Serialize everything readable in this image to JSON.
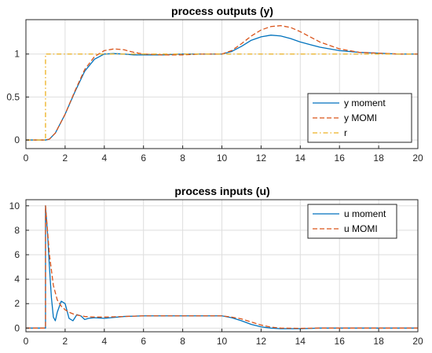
{
  "chart_data": [
    {
      "type": "line",
      "title": "process outputs (y)",
      "xlabel": "",
      "ylabel": "",
      "xlim": [
        0,
        20
      ],
      "ylim": [
        -0.1,
        1.4
      ],
      "xticks": [
        "0",
        "2",
        "4",
        "6",
        "8",
        "10",
        "12",
        "14",
        "16",
        "18",
        "20"
      ],
      "yticks": [
        "0",
        "0.5",
        "1"
      ],
      "grid": true,
      "legend_position": "lower-right",
      "series": [
        {
          "name": "y moment",
          "color": "#0072BD",
          "style": "solid",
          "x": [
            0,
            1.0,
            1.2,
            1.5,
            2.0,
            2.5,
            3.0,
            3.5,
            4.0,
            4.5,
            5.0,
            5.5,
            6.0,
            7.0,
            8.0,
            9.0,
            10.0,
            10.5,
            11.0,
            11.5,
            12.0,
            12.5,
            13.0,
            13.5,
            14.0,
            14.5,
            15.0,
            16.0,
            17.0,
            18.0,
            19.0,
            20.0
          ],
          "y": [
            0,
            0,
            0.01,
            0.08,
            0.3,
            0.56,
            0.8,
            0.94,
            1.0,
            1.005,
            1.0,
            0.99,
            0.99,
            0.99,
            1.0,
            1.0,
            1.0,
            1.03,
            1.09,
            1.16,
            1.2,
            1.22,
            1.21,
            1.18,
            1.14,
            1.11,
            1.08,
            1.04,
            1.02,
            1.01,
            1.0,
            1.0
          ]
        },
        {
          "name": "y MOMI",
          "color": "#D95319",
          "style": "dashed",
          "x": [
            0,
            1.0,
            1.2,
            1.5,
            2.0,
            2.5,
            3.0,
            3.5,
            4.0,
            4.5,
            5.0,
            5.5,
            6.0,
            7.0,
            8.0,
            9.0,
            10.0,
            10.5,
            11.0,
            11.5,
            12.0,
            12.5,
            13.0,
            13.5,
            14.0,
            14.5,
            15.0,
            16.0,
            17.0,
            18.0,
            19.0,
            20.0
          ],
          "y": [
            0,
            0,
            0.01,
            0.08,
            0.3,
            0.57,
            0.82,
            0.97,
            1.04,
            1.06,
            1.05,
            1.02,
            1.0,
            0.99,
            0.99,
            1.0,
            1.0,
            1.04,
            1.12,
            1.21,
            1.28,
            1.32,
            1.33,
            1.31,
            1.26,
            1.2,
            1.14,
            1.06,
            1.02,
            1.01,
            1.0,
            1.0
          ]
        },
        {
          "name": "r",
          "color": "#EDB120",
          "style": "dashdot",
          "x": [
            0,
            1.0,
            1.0,
            20.0
          ],
          "y": [
            0,
            0,
            1,
            1
          ]
        }
      ]
    },
    {
      "type": "line",
      "title": "process inputs (u)",
      "xlabel": "",
      "ylabel": "",
      "xlim": [
        0,
        20
      ],
      "ylim": [
        -0.3,
        10.5
      ],
      "xticks": [
        "0",
        "2",
        "4",
        "6",
        "8",
        "10",
        "12",
        "14",
        "16",
        "18",
        "20"
      ],
      "yticks": [
        "0",
        "2",
        "4",
        "6",
        "8",
        "10"
      ],
      "grid": true,
      "legend_position": "top-right",
      "series": [
        {
          "name": "u moment",
          "color": "#0072BD",
          "style": "solid",
          "x": [
            0,
            1.0,
            1.0,
            1.1,
            1.2,
            1.3,
            1.4,
            1.5,
            1.6,
            1.8,
            2.0,
            2.2,
            2.4,
            2.6,
            2.8,
            3.0,
            3.2,
            3.5,
            4.0,
            5.0,
            6.0,
            7.0,
            8.0,
            9.0,
            10.0,
            10.5,
            11.0,
            11.5,
            12.0,
            12.5,
            13.0,
            14.0,
            15.0,
            16.0,
            17.0,
            18.0,
            19.0,
            20.0
          ],
          "y": [
            0,
            0,
            10.0,
            7.8,
            5.0,
            2.5,
            0.9,
            0.6,
            1.3,
            2.2,
            2.0,
            0.8,
            0.6,
            1.1,
            1.0,
            0.7,
            0.8,
            0.85,
            0.8,
            0.95,
            1.0,
            1.0,
            1.0,
            1.0,
            1.0,
            0.85,
            0.6,
            0.3,
            0.1,
            0.0,
            -0.05,
            -0.05,
            0.0,
            0.0,
            0.0,
            0.0,
            0.0,
            0.0
          ]
        },
        {
          "name": "u MOMI",
          "color": "#D95319",
          "style": "dashed",
          "x": [
            0,
            1.0,
            1.0,
            1.1,
            1.2,
            1.4,
            1.6,
            1.8,
            2.0,
            2.2,
            2.5,
            3.0,
            3.5,
            4.0,
            5.0,
            6.0,
            7.0,
            8.0,
            9.0,
            10.0,
            10.5,
            11.0,
            11.5,
            12.0,
            12.5,
            13.0,
            14.0,
            15.0,
            16.0,
            17.0,
            18.0,
            19.0,
            20.0
          ],
          "y": [
            0,
            0,
            10.0,
            8.0,
            6.0,
            3.5,
            2.3,
            1.8,
            1.5,
            1.3,
            1.1,
            0.95,
            0.9,
            0.9,
            0.95,
            1.0,
            1.0,
            1.0,
            1.0,
            1.0,
            0.9,
            0.75,
            0.5,
            0.25,
            0.08,
            0.0,
            -0.02,
            0.0,
            0.0,
            0.0,
            0.0,
            0.0,
            0.0
          ]
        }
      ]
    }
  ]
}
